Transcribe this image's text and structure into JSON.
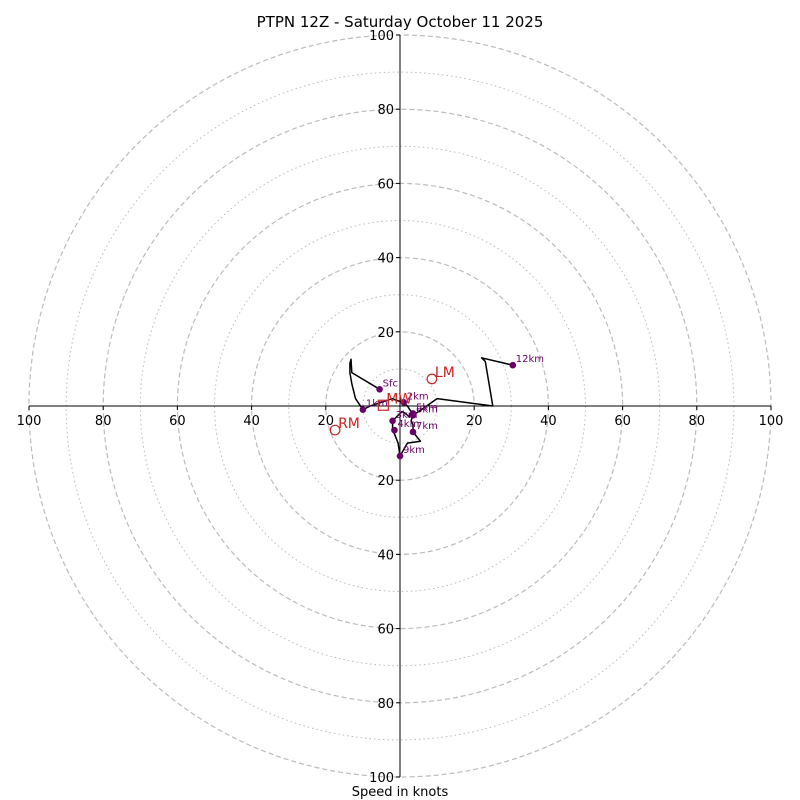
{
  "chart_data": {
    "type": "hodograph",
    "title": "PTPN 12Z - Saturday October 11 2025",
    "xlabel": "Speed in knots",
    "ylabel": "",
    "xlim": [
      -100,
      100
    ],
    "ylim": [
      -100,
      100
    ],
    "rings_major": [
      20,
      40,
      60,
      80,
      100
    ],
    "rings_minor": [
      10,
      30,
      50,
      70,
      90
    ],
    "x_tick_labels": [
      "100",
      "80",
      "60",
      "40",
      "20",
      "20",
      "40",
      "60",
      "80",
      "100"
    ],
    "x_tick_values": [
      -100,
      -80,
      -60,
      -40,
      -20,
      20,
      40,
      60,
      80,
      100
    ],
    "y_tick_labels": [
      "100",
      "80",
      "60",
      "40",
      "20",
      "20",
      "40",
      "60",
      "80",
      "100"
    ],
    "y_tick_values": [
      100,
      80,
      60,
      40,
      20,
      -20,
      -40,
      -60,
      -80,
      -100
    ],
    "trace": [
      [
        -5.5,
        4.5
      ],
      [
        -8,
        6
      ],
      [
        -13,
        9
      ],
      [
        -13.2,
        12.6
      ],
      [
        -13.5,
        11.5
      ],
      [
        -13.5,
        9
      ],
      [
        -13,
        6
      ],
      [
        -12,
        2
      ],
      [
        -10,
        -1
      ],
      [
        -8,
        0
      ],
      [
        -5,
        1
      ],
      [
        -2,
        2
      ],
      [
        -1,
        1.5
      ],
      [
        1,
        1
      ],
      [
        2,
        0
      ],
      [
        3,
        -1.5
      ],
      [
        2.5,
        -3
      ],
      [
        1.5,
        -2
      ],
      [
        0.5,
        -1.5
      ],
      [
        -1.5,
        -3.5
      ],
      [
        -2,
        -4
      ],
      [
        -2,
        -6.5
      ],
      [
        -1.5,
        -7.5
      ],
      [
        -0.5,
        -10
      ],
      [
        0,
        -13.5
      ],
      [
        2,
        -10
      ],
      [
        5.5,
        -9.5
      ],
      [
        3.5,
        -7
      ],
      [
        3.5,
        -5
      ],
      [
        3,
        -4
      ],
      [
        3.5,
        -2.5
      ],
      [
        5,
        -1.5
      ],
      [
        10,
        2
      ],
      [
        25,
        0
      ],
      [
        23,
        12
      ],
      [
        22,
        13
      ],
      [
        30.4,
        11
      ]
    ],
    "height_points": [
      {
        "label": "Sfc",
        "u": -5.5,
        "v": 4.5
      },
      {
        "label": "1km",
        "u": -10,
        "v": -1
      },
      {
        "label": "2km",
        "u": 1,
        "v": 1
      },
      {
        "label": "3km",
        "u": -2,
        "v": -4
      },
      {
        "label": "4km",
        "u": -1.5,
        "v": -6.5
      },
      {
        "label": "5km",
        "u": 3.5,
        "v": -2
      },
      {
        "label": "6km",
        "u": 3.5,
        "v": -2.5
      },
      {
        "label": "7km",
        "u": 3.5,
        "v": -7
      },
      {
        "label": "9km",
        "u": 0,
        "v": -13.5
      },
      {
        "label": "12km",
        "u": 30.4,
        "v": 11
      }
    ],
    "storm_motions": [
      {
        "label": "LM",
        "u": 8.6,
        "v": 7.3
      },
      {
        "label": "RM",
        "u": -17.5,
        "v": -6.5
      }
    ],
    "mean_wind": {
      "label": "MW",
      "u": -4.5,
      "v": 0.2
    },
    "colors": {
      "ring": "#bbbbbb",
      "trace": "#000000",
      "points": "#6a006a",
      "storm_motion": "#cc2222",
      "axes": "#000000"
    }
  }
}
